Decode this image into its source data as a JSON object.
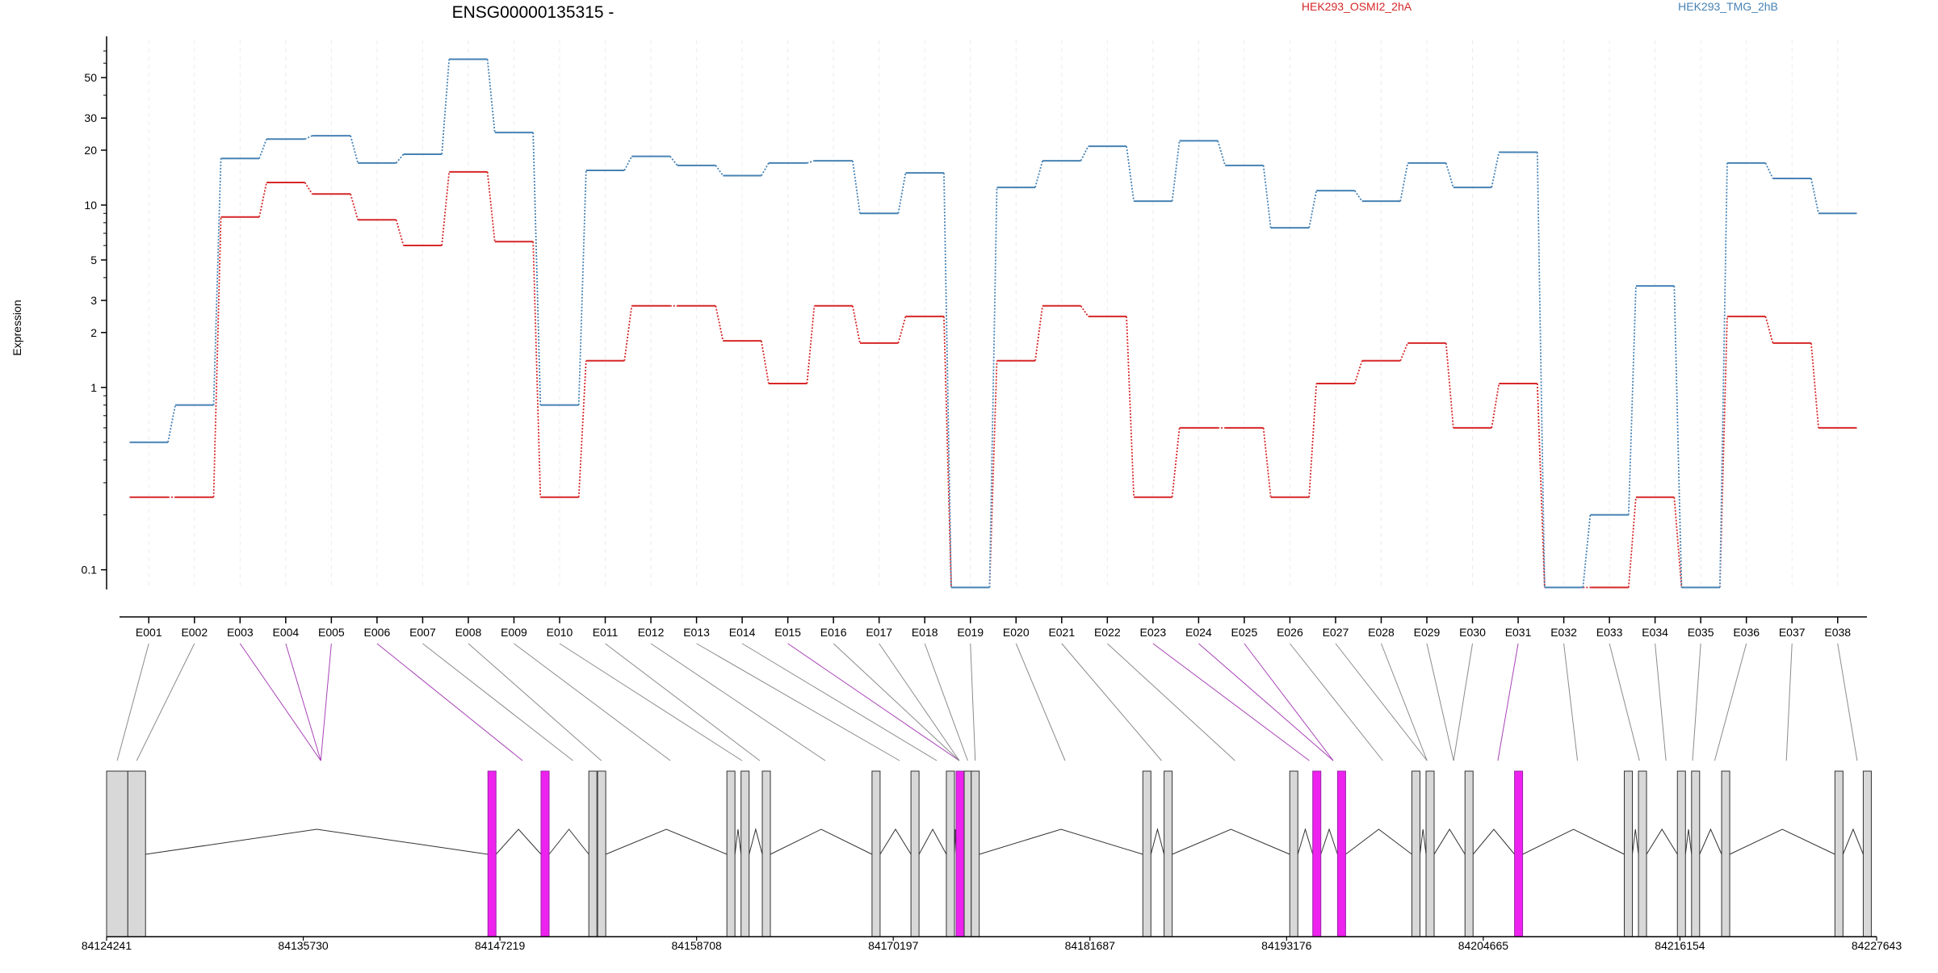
{
  "chart_data": {
    "type": "line",
    "title": "ENSG00000135315 -",
    "ylabel": "Expression",
    "xlabel": "",
    "y_scale": "log",
    "ylim": [
      0.078,
      80
    ],
    "y_ticks": [
      0.1,
      1,
      2,
      3,
      5,
      10,
      20,
      30,
      50
    ],
    "y_tick_labels": [
      "0.1",
      "1",
      "2",
      "3",
      "5",
      "10",
      "20",
      "30",
      "50"
    ],
    "grid": "vertical",
    "legend_placement": "top",
    "categories": [
      "E001",
      "E002",
      "E003",
      "E004",
      "E005",
      "E006",
      "E007",
      "E008",
      "E009",
      "E010",
      "E011",
      "E012",
      "E013",
      "E014",
      "E015",
      "E016",
      "E017",
      "E018",
      "E019",
      "E020",
      "E021",
      "E022",
      "E023",
      "E024",
      "E025",
      "E026",
      "E027",
      "E028",
      "E029",
      "E030",
      "E031",
      "E032",
      "E033",
      "E034",
      "E035",
      "E036",
      "E037",
      "E038"
    ],
    "series": [
      {
        "name": "HEK293_OSMI2_2hA",
        "color": "#d62728",
        "values": [
          0.25,
          0.25,
          8.6,
          13.3,
          11.5,
          8.3,
          6.0,
          15.2,
          6.3,
          0.25,
          1.4,
          2.8,
          2.8,
          1.8,
          1.05,
          2.8,
          1.75,
          2.45,
          0.08,
          1.4,
          2.8,
          2.45,
          0.25,
          0.6,
          0.6,
          0.25,
          1.05,
          1.4,
          1.75,
          0.6,
          1.05,
          0.08,
          0.08,
          0.25,
          0.08,
          2.45,
          1.75,
          0.6
        ]
      },
      {
        "name": "HEK293_TMG_2hB",
        "color": "#4682b4",
        "values": [
          0.5,
          0.8,
          18.0,
          23.0,
          24.0,
          17.0,
          19.0,
          63.0,
          25.0,
          0.8,
          15.5,
          18.5,
          16.5,
          14.5,
          17.0,
          17.5,
          9.0,
          15.0,
          0.08,
          12.5,
          17.5,
          21.0,
          10.5,
          22.5,
          16.5,
          7.5,
          12.0,
          10.5,
          17.0,
          12.5,
          19.5,
          0.08,
          0.2,
          3.6,
          0.08,
          17.0,
          14.0,
          9.0
        ]
      }
    ],
    "exon_model": {
      "coordinate_ticks": [
        "84124241",
        "84135730",
        "84147219",
        "84158708",
        "84170197",
        "84181687",
        "84193176",
        "84204665",
        "84216154",
        "84227643"
      ],
      "exon_region_columns": [
        [
          1
        ],
        [
          2
        ],
        [
          3,
          4,
          5
        ],
        [
          6
        ],
        [
          7
        ],
        [
          8
        ],
        [
          9
        ],
        [
          10
        ],
        [
          11
        ],
        [
          12
        ],
        [
          13
        ],
        [
          14
        ],
        [
          15,
          16,
          17
        ],
        [
          18
        ],
        [
          19
        ],
        [
          20
        ],
        [
          21
        ],
        [
          22
        ],
        [
          23
        ],
        [
          24,
          25
        ],
        [
          26
        ],
        [
          27,
          28
        ],
        [
          29,
          30
        ],
        [
          31
        ],
        [
          32
        ],
        [
          33
        ],
        [
          34
        ],
        [
          35
        ],
        [
          36
        ],
        [
          37
        ],
        [
          38
        ]
      ],
      "highlighted_exons": [
        "E003",
        "E004",
        "E005",
        "E006",
        "E015",
        "E023",
        "E024",
        "E025",
        "E031"
      ],
      "colors": {
        "highlight_fill": "#ee22ee",
        "highlight_line": "#9922aa",
        "plain_line": "#777777",
        "block_fill": "#d8d8d8"
      }
    }
  }
}
